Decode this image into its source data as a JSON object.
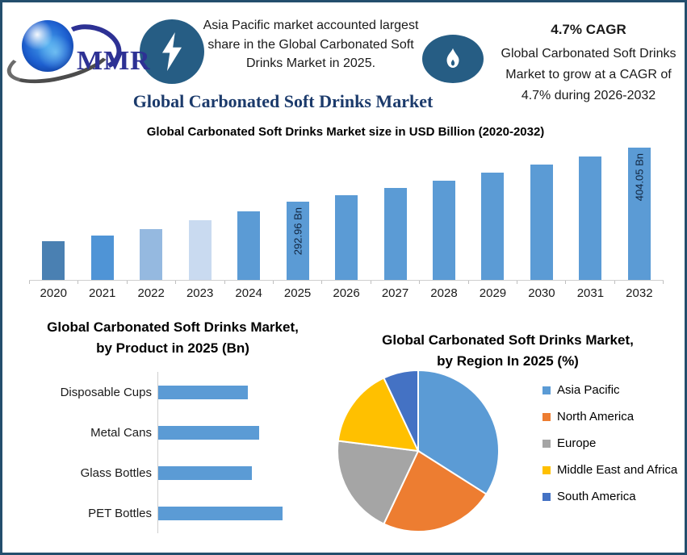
{
  "page": {
    "background": "#ffffff",
    "frame_color": "#234e6d",
    "badge_color": "#265d84"
  },
  "header": {
    "logo_text": "MMR",
    "highlight": "Asia Pacific market accounted largest share in the Global Carbonated Soft Drinks Market in 2025.",
    "cagr_headline": "4.7% CAGR",
    "cagr_body": "Global Carbonated Soft Drinks Market to grow at a CAGR of 4.7% during 2026-2032"
  },
  "main_title": "Global Carbonated Soft Drinks Market",
  "chart_data": [
    {
      "id": "market_size",
      "type": "bar",
      "title": "Global Carbonated Soft Drinks Market size in USD Billion (2020-2032)",
      "unit": "USD Billion",
      "categories": [
        "2020",
        "2021",
        "2022",
        "2023",
        "2024",
        "2025",
        "2026",
        "2027",
        "2028",
        "2029",
        "2030",
        "2031",
        "2032"
      ],
      "values": [
        212,
        223,
        236,
        255,
        273,
        292.96,
        306.7,
        321.1,
        336.2,
        352.0,
        368.6,
        385.9,
        404.05
      ],
      "values_note": "Only 2025 and 2032 are labeled on the chart; other years estimated from bar heights and the stated 4.7% CAGR.",
      "data_labels": {
        "2025": "292.96 Bn",
        "2032": "404.05 Bn"
      },
      "bar_colors": [
        "#4a80b2",
        "#4f94d6",
        "#95b9e0",
        "#c9daf0",
        "#5b9bd5",
        "#5b9bd5",
        "#5b9bd5",
        "#5b9bd5",
        "#5b9bd5",
        "#5b9bd5",
        "#5b9bd5",
        "#5b9bd5",
        "#5b9bd5"
      ],
      "ylim_baseline_value": 132,
      "grid": false,
      "axis_color": "#cfcfcf"
    },
    {
      "id": "by_product",
      "type": "bar",
      "orientation": "horizontal",
      "title_lines": [
        "Global Carbonated Soft Drinks Market,",
        "by Product in 2025 (Bn)"
      ],
      "categories": [
        "Disposable Cups",
        "Metal Cans",
        "Glass Bottles",
        "PET Bottles"
      ],
      "values_pct_of_max": [
        72,
        81,
        75,
        100
      ],
      "values_note": "No axis or data labels shown; bar lengths expressed as percent of longest bar (PET Bottles).",
      "bar_color": "#5b9bd5",
      "grid": false
    },
    {
      "id": "by_region",
      "type": "pie",
      "title_lines": [
        "Global Carbonated Soft Drinks Market,",
        "by Region In 2025 (%)"
      ],
      "legend_position": "right",
      "segments": [
        {
          "label": "Asia Pacific",
          "pct": 34,
          "color": "#5b9bd5"
        },
        {
          "label": "North America",
          "pct": 23,
          "color": "#ed7d31"
        },
        {
          "label": "Europe",
          "pct": 20,
          "color": "#a5a5a5"
        },
        {
          "label": "Middle East and Africa",
          "pct": 16,
          "color": "#ffc000"
        },
        {
          "label": "South America",
          "pct": 7,
          "color": "#4472c4"
        }
      ],
      "values_note": "Slice percentages estimated from slice angles; no numeric labels shown."
    }
  ]
}
